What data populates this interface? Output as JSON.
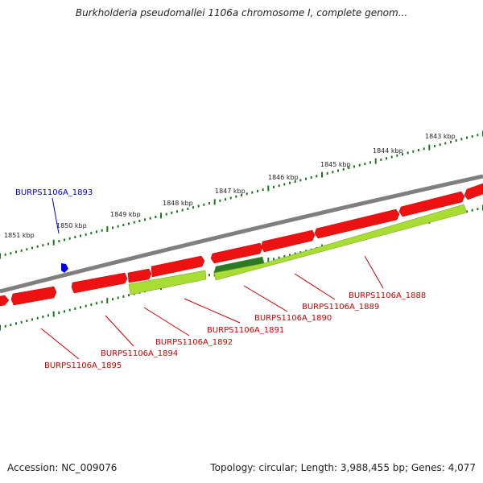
{
  "title": "Burkholderia pseudomallei 1106a chromosome I, complete genom...",
  "footer": {
    "accession": "Accession: NC_009076",
    "summary": "Topology: circular; Length: 3,988,455 bp; Genes: 4,077"
  },
  "colors": {
    "backbone": "#7f7f7f",
    "ruler": "#1a7a1a",
    "forward_gene": "#ee1111",
    "reverse_gene": "#aadd33",
    "reverse_gene_dark": "#2a7a2a",
    "label_red": "#cc0000",
    "label_blue": "#0000cc"
  },
  "ruler_labels": [
    "1843 kbp",
    "1844 kbp",
    "1845 kbp",
    "1846 kbp",
    "1847 kbp",
    "1848 kbp",
    "1849 kbp",
    "1850 kbp",
    "1851 kbp"
  ],
  "gene_labels_bottom": [
    "BURPS1106A_1888",
    "BURPS1106A_1889",
    "BURPS1106A_1890",
    "BURPS1106A_1891",
    "BURPS1106A_1892",
    "BURPS1106A_1894",
    "BURPS1106A_1895"
  ],
  "gene_label_top": "BURPS1106A_1893"
}
